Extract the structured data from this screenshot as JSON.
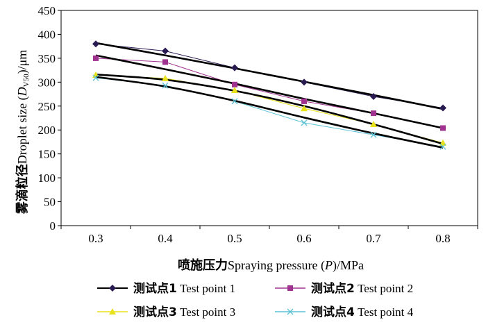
{
  "chart_data": {
    "type": "line",
    "title": "",
    "xlabel_cn": "喷施压力",
    "xlabel_en": "Spraying pressure (",
    "xlabel_var": "P",
    "xlabel_unit": ")/MPa",
    "ylabel_cn": "雾滴粒径",
    "ylabel_en": "Droplet size  (",
    "ylabel_var": "D",
    "ylabel_sub": "V50",
    "ylabel_unit": ")/μm",
    "x": [
      0.3,
      0.4,
      0.5,
      0.6,
      0.7,
      0.8
    ],
    "x_tick_labels": [
      "0.3",
      "0.4",
      "0.5",
      "0.6",
      "0.7",
      "0.8"
    ],
    "xlim": [
      0.25,
      0.85
    ],
    "ylim": [
      0,
      450
    ],
    "y_ticks": [
      0,
      50,
      100,
      150,
      200,
      250,
      300,
      350,
      400,
      450
    ],
    "y_tick_labels": [
      "0",
      "50",
      "100",
      "150",
      "200",
      "250",
      "300",
      "350",
      "400",
      "450"
    ],
    "series": [
      {
        "name": "测试点1 Test point 1",
        "name_cn": "测试点1",
        "name_en": " Test point 1",
        "values": [
          380,
          365,
          330,
          300,
          270,
          246
        ],
        "trend": [
          382,
          356,
          329,
          301,
          273,
          244
        ],
        "marker": "diamond",
        "color": "#2a1a52"
      },
      {
        "name": "测试点2 Test point 2",
        "name_cn": "测试点2",
        "name_en": " Test point 2",
        "values": [
          350,
          342,
          295,
          260,
          235,
          204
        ],
        "trend": [
          356,
          327,
          297,
          265,
          235,
          204
        ],
        "marker": "square",
        "color": "#a0338f"
      },
      {
        "name": "测试点3 Test point 3",
        "name_cn": "测试点3",
        "name_en": " Test point 3",
        "values": [
          315,
          308,
          283,
          245,
          212,
          173
        ],
        "trend": [
          316,
          305,
          282,
          250,
          212,
          171
        ],
        "marker": "triangle",
        "color": "#e8e21a"
      },
      {
        "name": "测试点4 Test point 4",
        "name_cn": "测试点4",
        "name_en": " Test point 4",
        "values": [
          309,
          293,
          260,
          215,
          190,
          165
        ],
        "trend": [
          311,
          291,
          261,
          226,
          193,
          163
        ],
        "marker": "x",
        "color": "#5bc2d6"
      }
    ],
    "trendline_color": "#000000",
    "legend_position": "bottom"
  }
}
